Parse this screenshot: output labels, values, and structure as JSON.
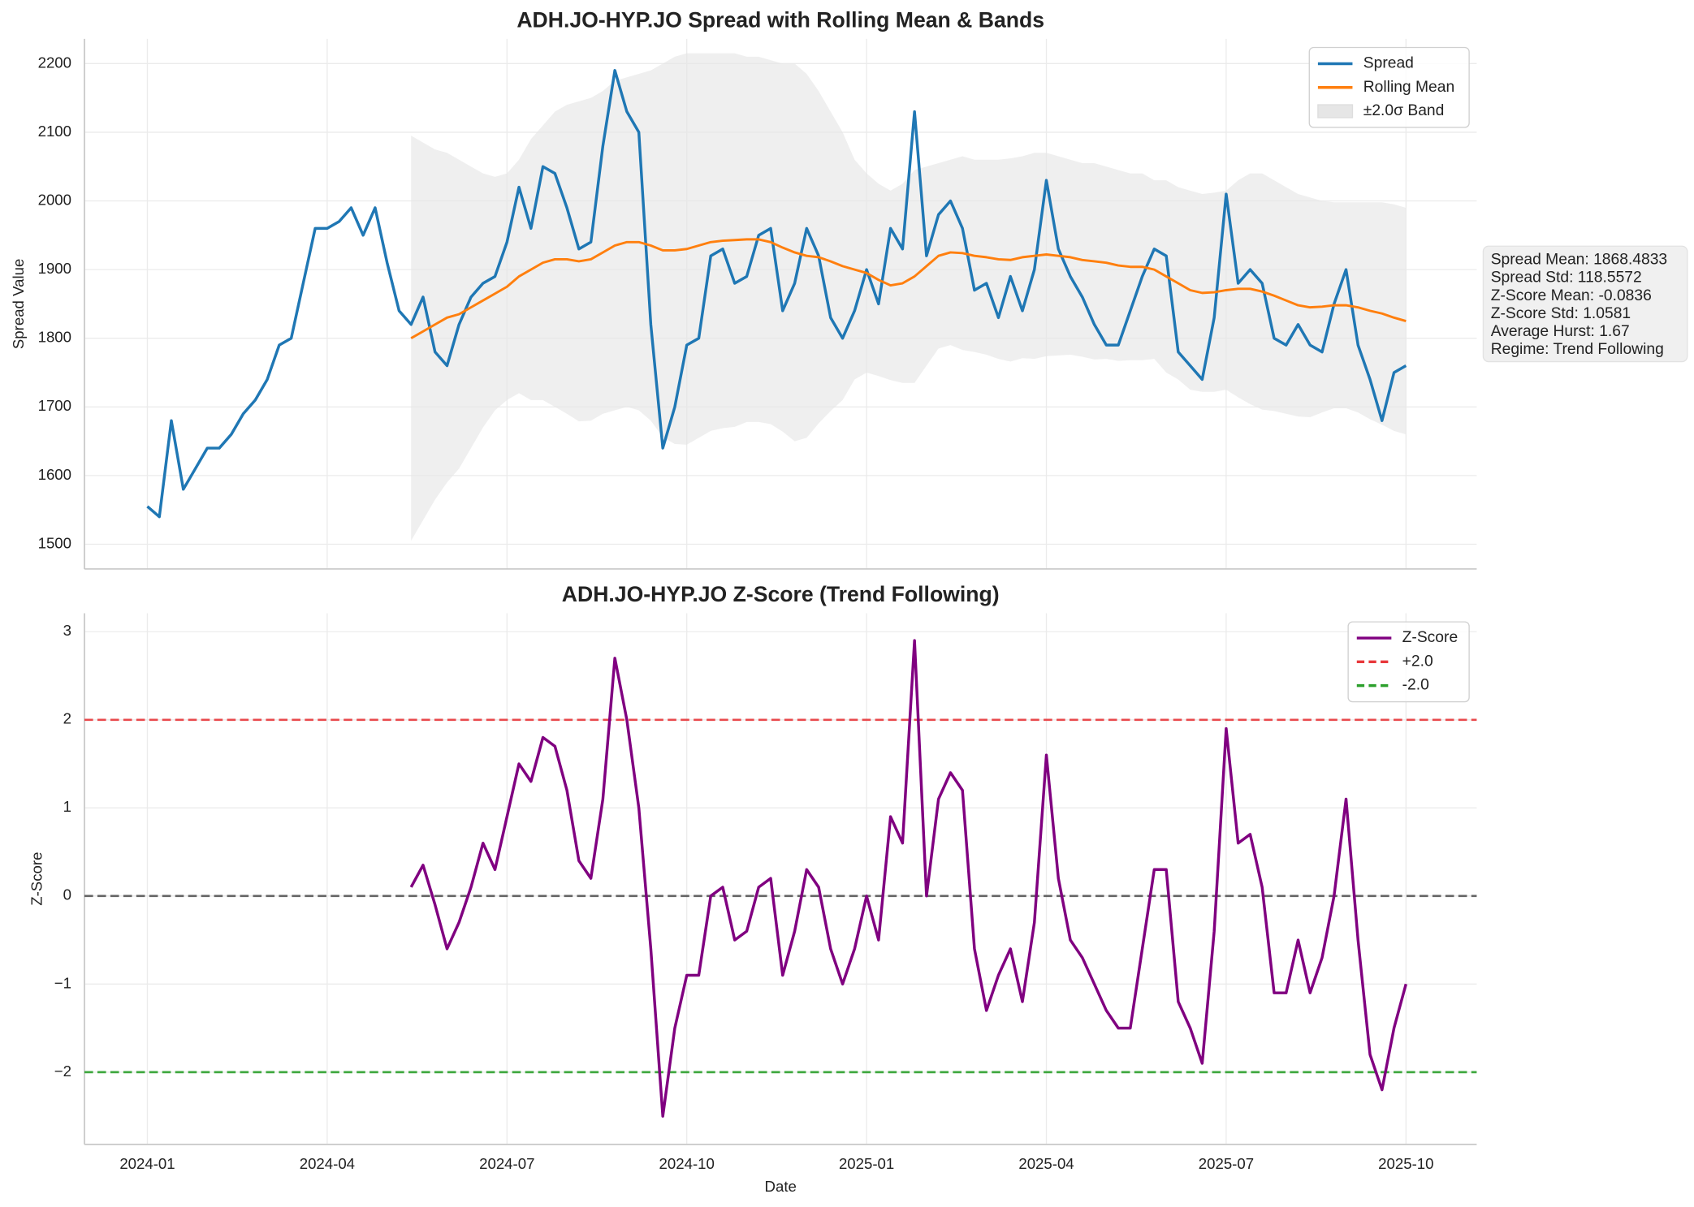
{
  "chart_data": [
    {
      "type": "line",
      "title": "ADH.JO-HYP.JO Spread with Rolling Mean & Bands",
      "y_label": "Spread Value",
      "x": [
        0,
        0.2,
        0.4,
        0.6,
        0.8,
        1,
        1.2,
        1.4,
        1.6,
        1.8,
        2,
        2.2,
        2.4,
        2.6,
        2.8,
        3,
        3.2,
        3.4,
        3.6,
        3.8,
        4,
        4.2,
        4.4,
        4.6,
        4.8,
        5,
        5.2,
        5.4,
        5.6,
        5.8,
        6,
        6.2,
        6.4,
        6.6,
        6.8,
        7,
        7.2,
        7.4,
        7.6,
        7.8,
        8,
        8.2,
        8.4,
        8.6,
        8.8,
        9,
        9.2,
        9.4,
        9.6,
        9.8,
        10,
        10.2,
        10.4,
        10.6,
        10.8,
        11,
        11.2,
        11.4,
        11.6,
        11.8,
        12,
        12.2,
        12.4,
        12.6,
        12.8,
        13,
        13.2,
        13.4,
        13.6,
        13.8,
        14,
        14.2,
        14.4,
        14.6,
        14.8,
        15,
        15.2,
        15.4,
        15.6,
        15.8,
        16,
        16.2,
        16.4,
        16.6,
        16.8,
        17,
        17.2,
        17.4,
        17.6,
        17.8,
        18,
        18.2,
        18.4,
        18.6,
        18.8,
        19,
        19.2,
        19.4,
        19.6,
        19.8,
        20,
        20.2,
        20.4,
        20.6,
        20.8,
        21
      ],
      "series": [
        {
          "name": "Spread",
          "color": "#1f77b4",
          "values": [
            1555,
            1540,
            1680,
            1580,
            1610,
            1640,
            1640,
            1660,
            1690,
            1710,
            1740,
            1790,
            1800,
            1880,
            1960,
            1960,
            1970,
            1990,
            1950,
            1990,
            1910,
            1840,
            1820,
            1860,
            1780,
            1760,
            1820,
            1860,
            1880,
            1890,
            1940,
            2020,
            1960,
            2050,
            2040,
            1990,
            1930,
            1940,
            2080,
            2190,
            2130,
            2100,
            1820,
            1640,
            1700,
            1790,
            1800,
            1920,
            1930,
            1880,
            1890,
            1950,
            1960,
            1840,
            1880,
            1960,
            1920,
            1830,
            1800,
            1840,
            1900,
            1850,
            1960,
            1930,
            2130,
            1920,
            1980,
            2000,
            1960,
            1870,
            1880,
            1830,
            1890,
            1840,
            1900,
            2030,
            1930,
            1890,
            1860,
            1820,
            1790,
            1790,
            1840,
            1890,
            1930,
            1920,
            1780,
            1760,
            1740,
            1830,
            2010,
            1880,
            1900,
            1880,
            1800,
            1790,
            1820,
            1790,
            1780,
            1850,
            1900,
            1790,
            1740,
            1680,
            1750,
            1760
          ]
        },
        {
          "name": "Rolling Mean",
          "color": "#ff7f0e",
          "values": [
            null,
            null,
            null,
            null,
            null,
            null,
            null,
            null,
            null,
            null,
            null,
            null,
            null,
            null,
            null,
            null,
            null,
            null,
            null,
            null,
            null,
            null,
            1800,
            1810,
            1820,
            1830,
            1835,
            1845,
            1855,
            1865,
            1875,
            1890,
            1900,
            1910,
            1915,
            1915,
            1912,
            1915,
            1925,
            1935,
            1940,
            1940,
            1935,
            1928,
            1928,
            1930,
            1935,
            1940,
            1942,
            1943,
            1944,
            1944,
            1940,
            1932,
            1925,
            1920,
            1918,
            1912,
            1905,
            1900,
            1895,
            1885,
            1877,
            1880,
            1890,
            1905,
            1920,
            1925,
            1924,
            1920,
            1918,
            1915,
            1914,
            1918,
            1920,
            1922,
            1920,
            1918,
            1914,
            1912,
            1910,
            1906,
            1904,
            1904,
            1900,
            1890,
            1880,
            1870,
            1866,
            1867,
            1870,
            1872,
            1872,
            1868,
            1862,
            1855,
            1848,
            1845,
            1846,
            1848,
            1848,
            1845,
            1840,
            1836,
            1830,
            1825
          ]
        }
      ],
      "band": {
        "name": "±2.0σ Band",
        "color": "#e6e6e6",
        "upper": [
          null,
          null,
          null,
          null,
          null,
          null,
          null,
          null,
          null,
          null,
          null,
          null,
          null,
          null,
          null,
          null,
          null,
          null,
          null,
          null,
          null,
          null,
          2095,
          2085,
          2075,
          2070,
          2060,
          2050,
          2040,
          2035,
          2040,
          2060,
          2090,
          2110,
          2130,
          2140,
          2145,
          2150,
          2160,
          2175,
          2180,
          2185,
          2190,
          2200,
          2210,
          2215,
          2215,
          2215,
          2215,
          2215,
          2210,
          2210,
          2205,
          2200,
          2200,
          2185,
          2160,
          2130,
          2100,
          2060,
          2040,
          2025,
          2015,
          2025,
          2045,
          2050,
          2055,
          2060,
          2065,
          2060,
          2060,
          2060,
          2062,
          2065,
          2070,
          2070,
          2065,
          2060,
          2055,
          2055,
          2050,
          2045,
          2040,
          2040,
          2030,
          2030,
          2020,
          2015,
          2010,
          2012,
          2015,
          2030,
          2040,
          2040,
          2030,
          2020,
          2010,
          2005,
          2000,
          1998,
          1998,
          1998,
          1998,
          1998,
          1995,
          1990
        ],
        "lower": [
          null,
          null,
          null,
          null,
          null,
          null,
          null,
          null,
          null,
          null,
          null,
          null,
          null,
          null,
          null,
          null,
          null,
          null,
          null,
          null,
          null,
          null,
          1505,
          1535,
          1565,
          1590,
          1610,
          1640,
          1670,
          1695,
          1710,
          1720,
          1710,
          1710,
          1700,
          1690,
          1679,
          1680,
          1690,
          1695,
          1700,
          1695,
          1680,
          1656,
          1646,
          1645,
          1655,
          1665,
          1669,
          1671,
          1678,
          1678,
          1675,
          1664,
          1650,
          1655,
          1676,
          1694,
          1710,
          1740,
          1750,
          1745,
          1739,
          1735,
          1735,
          1760,
          1785,
          1790,
          1783,
          1780,
          1776,
          1770,
          1766,
          1771,
          1770,
          1774,
          1775,
          1776,
          1773,
          1769,
          1770,
          1767,
          1768,
          1768,
          1770,
          1750,
          1740,
          1725,
          1722,
          1722,
          1725,
          1714,
          1704,
          1696,
          1694,
          1690,
          1686,
          1685,
          1692,
          1698,
          1698,
          1692,
          1682,
          1674,
          1665,
          1660
        ]
      },
      "xlim": [
        -1.05,
        22.18
      ],
      "xticks": [
        0,
        3,
        6,
        9,
        12,
        15,
        18,
        21
      ],
      "ylim": [
        1464,
        2236
      ],
      "yticks": [
        1500,
        1600,
        1700,
        1800,
        1900,
        2000,
        2100,
        2200
      ],
      "grid": true,
      "legend": "upper right",
      "stats_box": [
        "Spread Mean: 1868.4833",
        "Spread Std: 118.5572",
        "Z-Score Mean: -0.0836",
        "Z-Score Std: 1.0581",
        "Average Hurst: 1.67",
        "Regime: Trend Following"
      ]
    },
    {
      "type": "line",
      "title": "ADH.JO-HYP.JO Z-Score (Trend Following)",
      "y_label": "Z-Score",
      "x_label": "Date",
      "x": [
        4.4,
        4.6,
        4.8,
        5,
        5.2,
        5.4,
        5.6,
        5.8,
        6,
        6.2,
        6.4,
        6.6,
        6.8,
        7,
        7.2,
        7.4,
        7.6,
        7.8,
        8,
        8.2,
        8.4,
        8.6,
        8.8,
        9,
        9.2,
        9.4,
        9.6,
        9.8,
        10,
        10.2,
        10.4,
        10.6,
        10.8,
        11,
        11.2,
        11.4,
        11.6,
        11.8,
        12,
        12.2,
        12.4,
        12.6,
        12.8,
        13,
        13.2,
        13.4,
        13.6,
        13.8,
        14,
        14.2,
        14.4,
        14.6,
        14.8,
        15,
        15.2,
        15.4,
        15.6,
        15.8,
        16,
        16.2,
        16.4,
        16.6,
        16.8,
        17,
        17.2,
        17.4,
        17.6,
        17.8,
        18,
        18.2,
        18.4,
        18.6,
        18.8,
        19,
        19.2,
        19.4,
        19.6,
        19.8,
        20,
        20.2,
        20.4,
        20.6,
        20.8,
        21
      ],
      "series": [
        {
          "name": "Z-Score",
          "color": "#800080",
          "values": [
            0.1,
            0.35,
            -0.1,
            -0.6,
            -0.3,
            0.1,
            0.6,
            0.3,
            0.9,
            1.5,
            1.3,
            1.8,
            1.7,
            1.2,
            0.4,
            0.2,
            1.1,
            2.7,
            2.0,
            1.0,
            -0.6,
            -2.5,
            -1.5,
            -0.9,
            -0.9,
            0.0,
            0.1,
            -0.5,
            -0.4,
            0.1,
            0.2,
            -0.9,
            -0.4,
            0.3,
            0.1,
            -0.6,
            -1.0,
            -0.6,
            0.0,
            -0.5,
            0.9,
            0.6,
            2.9,
            0.0,
            1.1,
            1.4,
            1.2,
            -0.6,
            -1.3,
            -0.9,
            -0.6,
            -1.2,
            -0.3,
            1.6,
            0.2,
            -0.5,
            -0.7,
            -1.0,
            -1.3,
            -1.5,
            -1.5,
            -0.6,
            0.3,
            0.3,
            -1.2,
            -1.5,
            -1.9,
            -0.4,
            1.9,
            0.6,
            0.7,
            0.1,
            -1.1,
            -1.1,
            -0.5,
            -1.1,
            -0.7,
            0.0,
            1.1,
            -0.5,
            -1.8,
            -2.2,
            -1.5,
            -1.0
          ]
        }
      ],
      "reference_lines": [
        {
          "name": "+2.0",
          "value": 2,
          "color": "#e8383b"
        },
        {
          "name": "-2.0",
          "value": -2,
          "color": "#2ca02c"
        },
        {
          "value": 0,
          "color": "#555555"
        }
      ],
      "xlim": [
        -1.05,
        22.18
      ],
      "xticks": [
        {
          "value": 0,
          "label": "2024-01"
        },
        {
          "value": 3,
          "label": "2024-04"
        },
        {
          "value": 6,
          "label": "2024-07"
        },
        {
          "value": 9,
          "label": "2024-10"
        },
        {
          "value": 12,
          "label": "2025-01"
        },
        {
          "value": 15,
          "label": "2025-04"
        },
        {
          "value": 18,
          "label": "2025-07"
        },
        {
          "value": 21,
          "label": "2025-10"
        }
      ],
      "ylim": [
        -2.82,
        3.21
      ],
      "yticks": [
        {
          "value": -2,
          "label": "−2"
        },
        {
          "value": -1,
          "label": "−1"
        },
        0,
        1,
        2,
        3
      ],
      "grid": true,
      "legend": "upper right"
    }
  ]
}
